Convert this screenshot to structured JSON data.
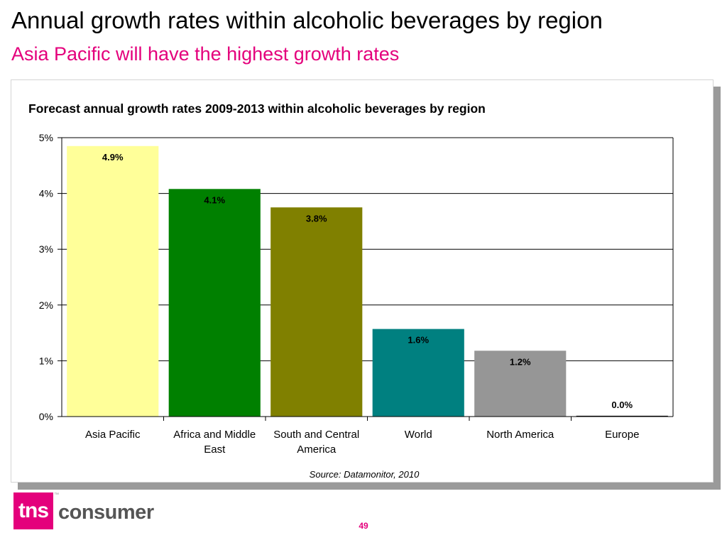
{
  "slide": {
    "title": "Annual growth rates within alcoholic beverages by region",
    "subtitle": "Asia Pacific will have the highest growth rates",
    "page_number": "49"
  },
  "logo": {
    "mark": "tns",
    "word": "consumer",
    "trademark": "™"
  },
  "colors": {
    "subtitle": "#e4007c",
    "brand": "#e4007c",
    "bar_asia_pacific": "#ffff99",
    "bar_africa_middle_east": "#008000",
    "bar_south_central_america": "#808000",
    "bar_world": "#008080",
    "bar_north_america": "#969696",
    "bar_europe": "#969696"
  },
  "chart_data": {
    "type": "bar",
    "title": "Forecast annual growth rates 2009-2013 within alcoholic beverages by region",
    "categories": [
      [
        "Asia Pacific"
      ],
      [
        "Africa and Middle",
        "East"
      ],
      [
        "South and Central",
        "America"
      ],
      [
        "World"
      ],
      [
        "North America"
      ],
      [
        "Europe"
      ]
    ],
    "values": [
      4.85,
      4.08,
      3.75,
      1.57,
      1.18,
      0.0
    ],
    "value_labels": [
      "4.9%",
      "4.1%",
      "3.8%",
      "1.6%",
      "1.2%",
      "0.0%"
    ],
    "bar_colors": [
      "#ffff99",
      "#008000",
      "#808000",
      "#008080",
      "#969696",
      "#969696"
    ],
    "yticks": [
      "0%",
      "1%",
      "2%",
      "3%",
      "4%",
      "5%"
    ],
    "ylim": [
      0,
      5
    ],
    "xlabel": "",
    "ylabel": "",
    "grid": true,
    "legend": "none",
    "source": "Source: Datamonitor, 2010"
  }
}
